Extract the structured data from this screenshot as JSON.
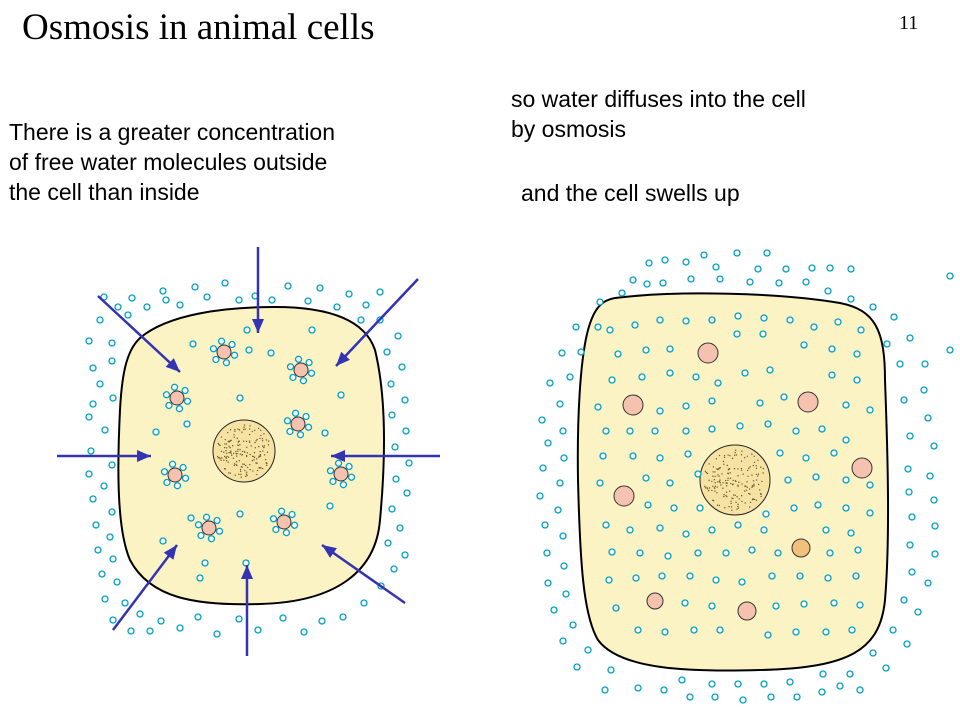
{
  "slide": {
    "title": "Osmosis in animal cells",
    "number": "11"
  },
  "text": {
    "left_lines": [
      "There is a greater concentration",
      "of free water molecules outside",
      "the cell than inside"
    ],
    "right_lines": [
      "so water diffuses into the cell",
      "by osmosis"
    ],
    "swells": "and the cell swells up"
  },
  "colors": {
    "cytoplasm": "#FBF3C4",
    "membrane": "#000000",
    "water_molecule": "#00A0C8",
    "solute": "#F5C2B0",
    "nucleus": "#F6E3A4",
    "arrow": "#3333B3"
  }
}
